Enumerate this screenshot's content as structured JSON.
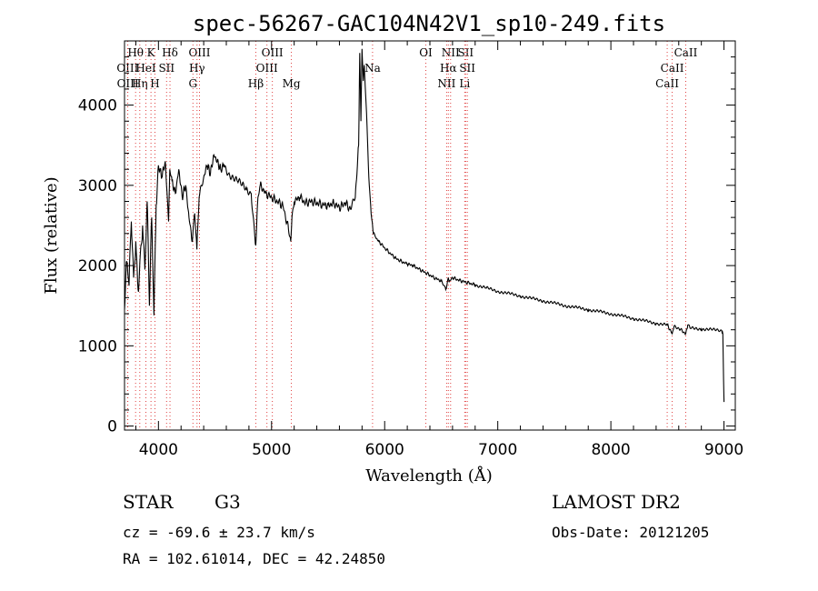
{
  "chart_data": {
    "type": "line",
    "title": "spec-56267-GAC104N42V1_sp10-249.fits",
    "xlabel": "Wavelength (Å)",
    "ylabel": "Flux (relative)",
    "xlim": [
      3700,
      9100
    ],
    "ylim": [
      -50,
      4800
    ],
    "xticks": [
      4000,
      5000,
      6000,
      7000,
      8000,
      9000
    ],
    "yticks": [
      0,
      1000,
      2000,
      3000,
      4000
    ],
    "grid": false,
    "series": [
      {
        "color": "#000000",
        "x": [
          3700,
          3720,
          3740,
          3760,
          3780,
          3800,
          3820,
          3840,
          3860,
          3880,
          3900,
          3920,
          3940,
          3960,
          3980,
          4000,
          4030,
          4060,
          4090,
          4100,
          4120,
          4150,
          4180,
          4210,
          4240,
          4270,
          4300,
          4320,
          4340,
          4360,
          4380,
          4400,
          4430,
          4460,
          4490,
          4520,
          4550,
          4580,
          4620,
          4660,
          4700,
          4740,
          4780,
          4820,
          4860,
          4880,
          4900,
          4950,
          5000,
          5050,
          5100,
          5150,
          5170,
          5180,
          5200,
          5250,
          5300,
          5350,
          5400,
          5450,
          5500,
          5550,
          5600,
          5650,
          5700,
          5740,
          5770,
          5780,
          5790,
          5800,
          5810,
          5820,
          5840,
          5860,
          5880,
          5890,
          5900,
          5920,
          5950,
          6000,
          6050,
          6100,
          6150,
          6200,
          6250,
          6300,
          6350,
          6400,
          6450,
          6500,
          6540,
          6563,
          6570,
          6600,
          6650,
          6700,
          6750,
          6800,
          6900,
          7000,
          7200,
          7400,
          7600,
          7800,
          8000,
          8200,
          8400,
          8500,
          8542,
          8560,
          8600,
          8662,
          8680,
          8700,
          8800,
          8900,
          8980,
          8990,
          9000
        ],
        "y": [
          1450,
          2050,
          1750,
          2550,
          1850,
          2300,
          1700,
          2150,
          2500,
          1950,
          2800,
          1500,
          2600,
          1380,
          2750,
          3250,
          3100,
          3300,
          2550,
          3200,
          3050,
          2900,
          3200,
          2850,
          3000,
          2600,
          2300,
          2650,
          2200,
          2850,
          3000,
          3100,
          3250,
          3150,
          3380,
          3300,
          3200,
          3250,
          3150,
          3100,
          3050,
          3000,
          2950,
          2900,
          2250,
          2850,
          3000,
          2900,
          2850,
          2800,
          2750,
          2450,
          2300,
          2600,
          2800,
          2850,
          2780,
          2800,
          2780,
          2760,
          2750,
          2780,
          2720,
          2780,
          2700,
          2850,
          3500,
          4650,
          3800,
          4700,
          4300,
          4500,
          3900,
          3100,
          2650,
          2550,
          2400,
          2350,
          2300,
          2220,
          2150,
          2090,
          2050,
          2020,
          2000,
          1960,
          1920,
          1880,
          1840,
          1810,
          1700,
          1850,
          1800,
          1850,
          1820,
          1800,
          1780,
          1760,
          1720,
          1680,
          1620,
          1560,
          1500,
          1450,
          1400,
          1340,
          1280,
          1260,
          1150,
          1250,
          1220,
          1150,
          1260,
          1220,
          1210,
          1200,
          1190,
          1150,
          300
        ]
      }
    ],
    "lines": [
      {
        "name": "Hθ",
        "wave": 3798,
        "row": 0
      },
      {
        "name": "OIII",
        "wave": 3727,
        "row": 1
      },
      {
        "name": "OIII",
        "wave": 3729,
        "row": 2
      },
      {
        "name": "Hη",
        "wave": 3835,
        "row": 2
      },
      {
        "name": "K",
        "wave": 3934,
        "row": 0
      },
      {
        "name": "HeI",
        "wave": 3889,
        "row": 1
      },
      {
        "name": "SII",
        "wave": 4072,
        "row": 1
      },
      {
        "name": "H",
        "wave": 3969,
        "row": 2
      },
      {
        "name": "Hδ",
        "wave": 4102,
        "row": 0
      },
      {
        "name": "OIII",
        "wave": 4363,
        "row": 0
      },
      {
        "name": "Hγ",
        "wave": 4341,
        "row": 1
      },
      {
        "name": "G",
        "wave": 4305,
        "row": 2
      },
      {
        "name": "Hβ",
        "wave": 4861,
        "row": 2
      },
      {
        "name": "OIII",
        "wave": 5007,
        "row": 0
      },
      {
        "name": "OIII",
        "wave": 4959,
        "row": 1
      },
      {
        "name": "Mg",
        "wave": 5175,
        "row": 2
      },
      {
        "name": "Na",
        "wave": 5893,
        "row": 1
      },
      {
        "name": "OI",
        "wave": 6364,
        "row": 0
      },
      {
        "name": "NII",
        "wave": 6583,
        "row": 0
      },
      {
        "name": "SII",
        "wave": 6716,
        "row": 0
      },
      {
        "name": "Hα",
        "wave": 6563,
        "row": 1
      },
      {
        "name": "SII",
        "wave": 6731,
        "row": 1
      },
      {
        "name": "NII",
        "wave": 6548,
        "row": 2
      },
      {
        "name": "Li",
        "wave": 6708,
        "row": 2
      },
      {
        "name": "CaII",
        "wave": 8662,
        "row": 0
      },
      {
        "name": "CaII",
        "wave": 8542,
        "row": 1
      },
      {
        "name": "CaII",
        "wave": 8498,
        "row": 2
      }
    ]
  },
  "info": {
    "object_type": "STAR",
    "subclass": "G3",
    "cz": "cz = -69.6 ± 23.7 km/s",
    "coords": "RA = 102.61014, DEC =  42.24850",
    "survey": "LAMOST DR2",
    "obs_date": "Obs-Date: 20121205"
  }
}
